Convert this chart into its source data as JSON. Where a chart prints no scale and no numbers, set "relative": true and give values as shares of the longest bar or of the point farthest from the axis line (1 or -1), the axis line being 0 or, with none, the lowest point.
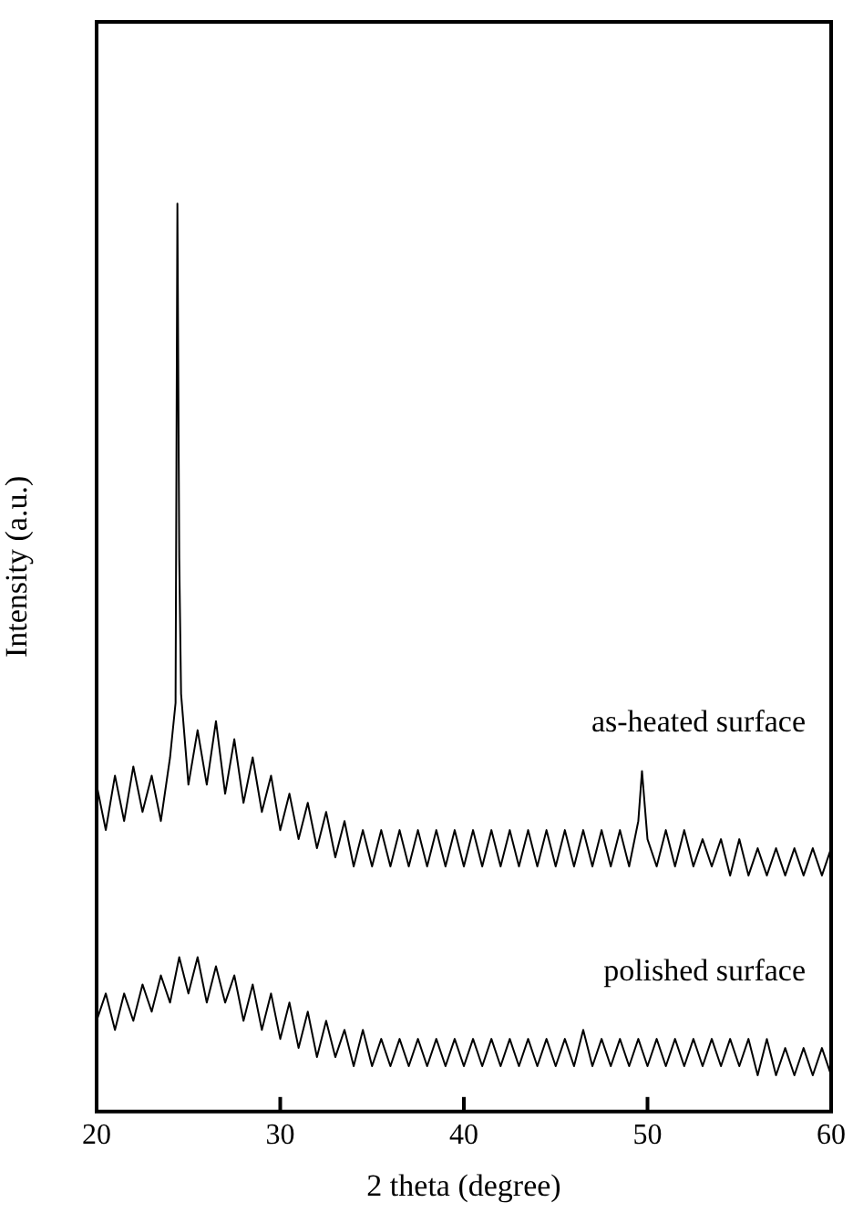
{
  "chart_data": {
    "type": "line",
    "xlabel": "2 theta (degree)",
    "ylabel": "Intensity (a.u.)",
    "relative": true,
    "xlim": [
      20,
      60
    ],
    "xticks": [
      20,
      30,
      40,
      50,
      60
    ],
    "grid": false,
    "legend": false,
    "marker": "none",
    "line_style": "solid",
    "series": [
      {
        "name": "as-heated surface",
        "color": "#000000",
        "x": [
          20,
          20.5,
          21,
          21.5,
          22,
          22.5,
          23,
          23.5,
          24,
          24.3,
          24.4,
          24.5,
          24.6,
          25,
          25.5,
          26,
          26.5,
          27,
          27.5,
          28,
          28.5,
          29,
          29.5,
          30,
          30.5,
          31,
          31.5,
          32,
          32.5,
          33,
          33.5,
          34,
          34.5,
          35,
          35.5,
          36,
          36.5,
          37,
          37.5,
          38,
          38.5,
          39,
          39.5,
          40,
          40.5,
          41,
          41.5,
          42,
          42.5,
          43,
          43.5,
          44,
          44.5,
          45,
          45.5,
          46,
          46.5,
          47,
          47.5,
          48,
          48.5,
          49,
          49.5,
          49.7,
          50,
          50.5,
          51,
          51.5,
          52,
          52.5,
          53,
          53.5,
          54,
          54.5,
          55,
          55.5,
          56,
          56.5,
          57,
          57.5,
          58,
          58.5,
          59,
          59.5,
          60
        ],
        "values": [
          0.36,
          0.31,
          0.37,
          0.32,
          0.38,
          0.33,
          0.37,
          0.32,
          0.39,
          0.45,
          1.0,
          0.61,
          0.46,
          0.36,
          0.42,
          0.36,
          0.43,
          0.35,
          0.41,
          0.34,
          0.39,
          0.33,
          0.37,
          0.31,
          0.35,
          0.3,
          0.34,
          0.29,
          0.33,
          0.28,
          0.32,
          0.27,
          0.31,
          0.27,
          0.31,
          0.27,
          0.31,
          0.27,
          0.31,
          0.27,
          0.31,
          0.27,
          0.31,
          0.27,
          0.31,
          0.27,
          0.31,
          0.27,
          0.31,
          0.27,
          0.31,
          0.27,
          0.31,
          0.27,
          0.31,
          0.27,
          0.31,
          0.27,
          0.31,
          0.27,
          0.31,
          0.27,
          0.32,
          0.375,
          0.3,
          0.27,
          0.31,
          0.27,
          0.31,
          0.27,
          0.3,
          0.27,
          0.3,
          0.26,
          0.3,
          0.26,
          0.29,
          0.26,
          0.29,
          0.26,
          0.29,
          0.26,
          0.29,
          0.26,
          0.29
        ]
      },
      {
        "name": "polished surface",
        "color": "#000000",
        "x": [
          20,
          20.5,
          21,
          21.5,
          22,
          22.5,
          23,
          23.5,
          24,
          24.5,
          25,
          25.5,
          26,
          26.5,
          27,
          27.5,
          28,
          28.5,
          29,
          29.5,
          30,
          30.5,
          31,
          31.5,
          32,
          32.5,
          33,
          33.5,
          34,
          34.5,
          35,
          35.5,
          36,
          36.5,
          37,
          37.5,
          38,
          38.5,
          39,
          39.5,
          40,
          40.5,
          41,
          41.5,
          42,
          42.5,
          43,
          43.5,
          44,
          44.5,
          45,
          45.5,
          46,
          46.5,
          47,
          47.5,
          48,
          48.5,
          49,
          49.5,
          50,
          50.5,
          51,
          51.5,
          52,
          52.5,
          53,
          53.5,
          54,
          54.5,
          55,
          55.5,
          56,
          56.5,
          57,
          57.5,
          58,
          58.5,
          59,
          59.5,
          60
        ],
        "values": [
          0.1,
          0.13,
          0.09,
          0.13,
          0.1,
          0.14,
          0.11,
          0.15,
          0.12,
          0.17,
          0.13,
          0.17,
          0.12,
          0.16,
          0.12,
          0.15,
          0.1,
          0.14,
          0.09,
          0.13,
          0.08,
          0.12,
          0.07,
          0.11,
          0.06,
          0.1,
          0.06,
          0.09,
          0.05,
          0.09,
          0.05,
          0.08,
          0.05,
          0.08,
          0.05,
          0.08,
          0.05,
          0.08,
          0.05,
          0.08,
          0.05,
          0.08,
          0.05,
          0.08,
          0.05,
          0.08,
          0.05,
          0.08,
          0.05,
          0.08,
          0.05,
          0.08,
          0.05,
          0.09,
          0.05,
          0.08,
          0.05,
          0.08,
          0.05,
          0.08,
          0.05,
          0.08,
          0.05,
          0.08,
          0.05,
          0.08,
          0.05,
          0.08,
          0.05,
          0.08,
          0.05,
          0.08,
          0.04,
          0.08,
          0.04,
          0.07,
          0.04,
          0.07,
          0.04,
          0.07,
          0.04
        ]
      }
    ]
  }
}
